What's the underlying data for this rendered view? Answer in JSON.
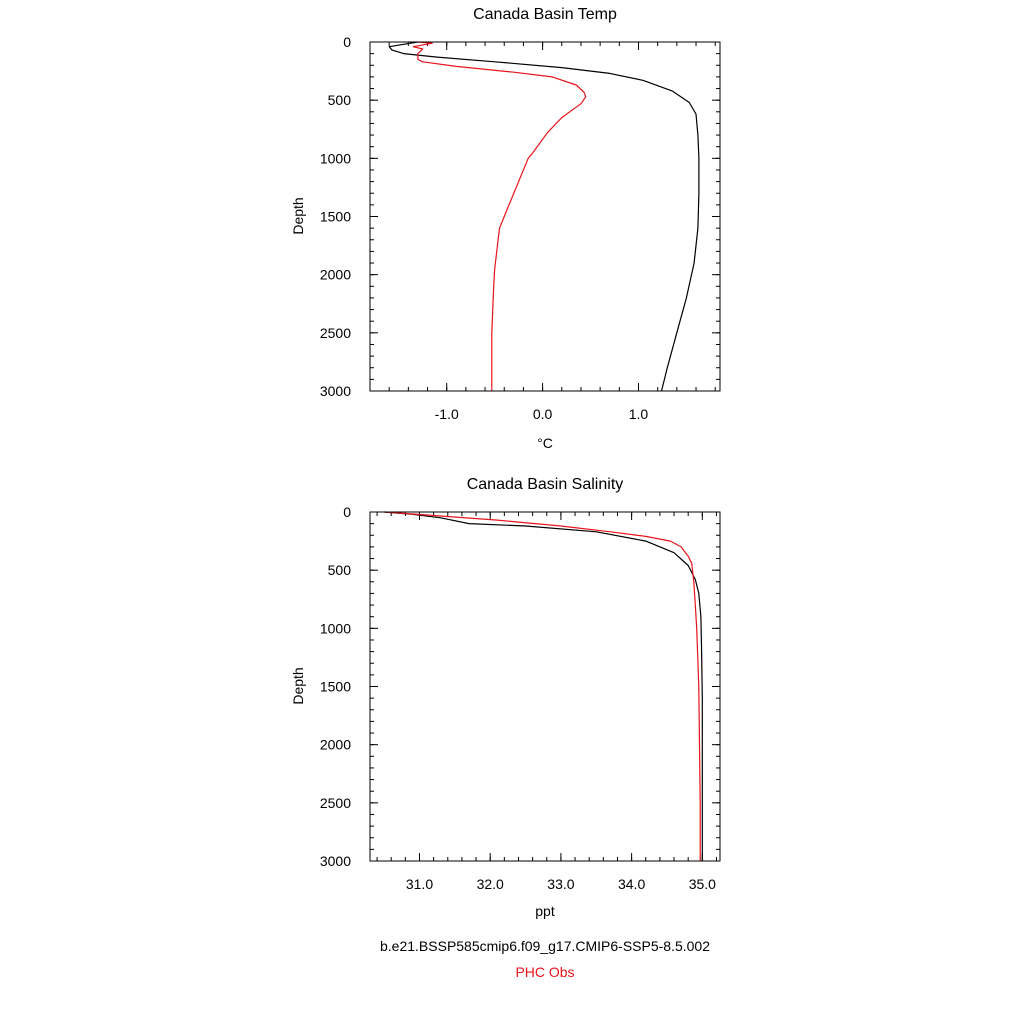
{
  "chart_data": [
    {
      "type": "line",
      "title": "Canada Basin Temp",
      "xlabel": "°C",
      "ylabel": "Depth",
      "xlim": [
        -1.8,
        1.85
      ],
      "ylim": [
        3000,
        0
      ],
      "x_ticks": [
        -1.0,
        0.0,
        1.0
      ],
      "x_tick_labels": [
        "-1.0",
        "0.0",
        "1.0"
      ],
      "y_ticks": [
        0,
        500,
        1000,
        1500,
        2000,
        2500,
        3000
      ],
      "y_tick_labels": [
        "0",
        "500",
        "1000",
        "1500",
        "2000",
        "2500",
        "3000"
      ],
      "series": [
        {
          "color": "#000000",
          "points": [
            [
              -1.3,
              0
            ],
            [
              -1.45,
              20
            ],
            [
              -1.6,
              40
            ],
            [
              -1.57,
              70
            ],
            [
              -1.45,
              100
            ],
            [
              -1.1,
              130
            ],
            [
              -0.5,
              170
            ],
            [
              0.2,
              220
            ],
            [
              0.7,
              270
            ],
            [
              1.05,
              330
            ],
            [
              1.35,
              420
            ],
            [
              1.53,
              520
            ],
            [
              1.6,
              620
            ],
            [
              1.62,
              800
            ],
            [
              1.63,
              1000
            ],
            [
              1.63,
              1300
            ],
            [
              1.62,
              1600
            ],
            [
              1.58,
              1900
            ],
            [
              1.5,
              2200
            ],
            [
              1.4,
              2500
            ],
            [
              1.3,
              2800
            ],
            [
              1.24,
              3000
            ]
          ]
        },
        {
          "color": "#e8141b",
          "points": [
            [
              -1.3,
              0
            ],
            [
              -1.15,
              10
            ],
            [
              -1.35,
              40
            ],
            [
              -1.25,
              60
            ],
            [
              -1.3,
              100
            ],
            [
              -1.3,
              150
            ],
            [
              -1.25,
              170
            ],
            [
              -0.9,
              210
            ],
            [
              -0.3,
              260
            ],
            [
              0.1,
              300
            ],
            [
              0.35,
              370
            ],
            [
              0.43,
              430
            ],
            [
              0.45,
              470
            ],
            [
              0.4,
              530
            ],
            [
              0.2,
              650
            ],
            [
              0.05,
              780
            ],
            [
              -0.1,
              950
            ],
            [
              -0.15,
              1000
            ],
            [
              -0.35,
              1400
            ],
            [
              -0.45,
              1600
            ],
            [
              -0.5,
              1950
            ],
            [
              -0.51,
              2100
            ],
            [
              -0.53,
              2500
            ],
            [
              -0.53,
              3000
            ]
          ]
        }
      ]
    },
    {
      "type": "line",
      "title": "Canada Basin Salinity",
      "xlabel": "ppt",
      "ylabel": "Depth",
      "xlim": [
        30.3,
        35.25
      ],
      "ylim": [
        3000,
        0
      ],
      "x_ticks": [
        31.0,
        32.0,
        33.0,
        34.0,
        35.0
      ],
      "x_tick_labels": [
        "31.0",
        "32.0",
        "33.0",
        "34.0",
        "35.0"
      ],
      "y_ticks": [
        0,
        500,
        1000,
        1500,
        2000,
        2500,
        3000
      ],
      "y_tick_labels": [
        "0",
        "500",
        "1000",
        "1500",
        "2000",
        "2500",
        "3000"
      ],
      "series": [
        {
          "color": "#000000",
          "points": [
            [
              30.5,
              0
            ],
            [
              30.9,
              20
            ],
            [
              31.3,
              50
            ],
            [
              31.7,
              100
            ],
            [
              32.5,
              120
            ],
            [
              33.5,
              170
            ],
            [
              34.2,
              250
            ],
            [
              34.6,
              350
            ],
            [
              34.8,
              460
            ],
            [
              34.9,
              580
            ],
            [
              34.95,
              700
            ],
            [
              34.98,
              900
            ],
            [
              34.99,
              1200
            ],
            [
              35.0,
              1600
            ],
            [
              35.0,
              2200
            ],
            [
              35.0,
              3000
            ]
          ]
        },
        {
          "color": "#e8141b",
          "points": [
            [
              30.5,
              0
            ],
            [
              31.2,
              30
            ],
            [
              32.1,
              70
            ],
            [
              33.0,
              120
            ],
            [
              33.7,
              170
            ],
            [
              34.2,
              210
            ],
            [
              34.55,
              250
            ],
            [
              34.7,
              300
            ],
            [
              34.8,
              380
            ],
            [
              34.85,
              440
            ],
            [
              34.88,
              600
            ],
            [
              34.9,
              800
            ],
            [
              34.92,
              1000
            ],
            [
              34.95,
              1500
            ],
            [
              34.96,
              2000
            ],
            [
              34.97,
              2500
            ],
            [
              34.97,
              3000
            ]
          ]
        }
      ]
    }
  ],
  "legend": {
    "items": [
      {
        "label": "b.e21.BSSP585cmip6.f09_g17.CMIP6-SSP5-8.5.002",
        "color": "#000000"
      },
      {
        "label": "PHC Obs",
        "color": "#e8141b"
      }
    ]
  }
}
